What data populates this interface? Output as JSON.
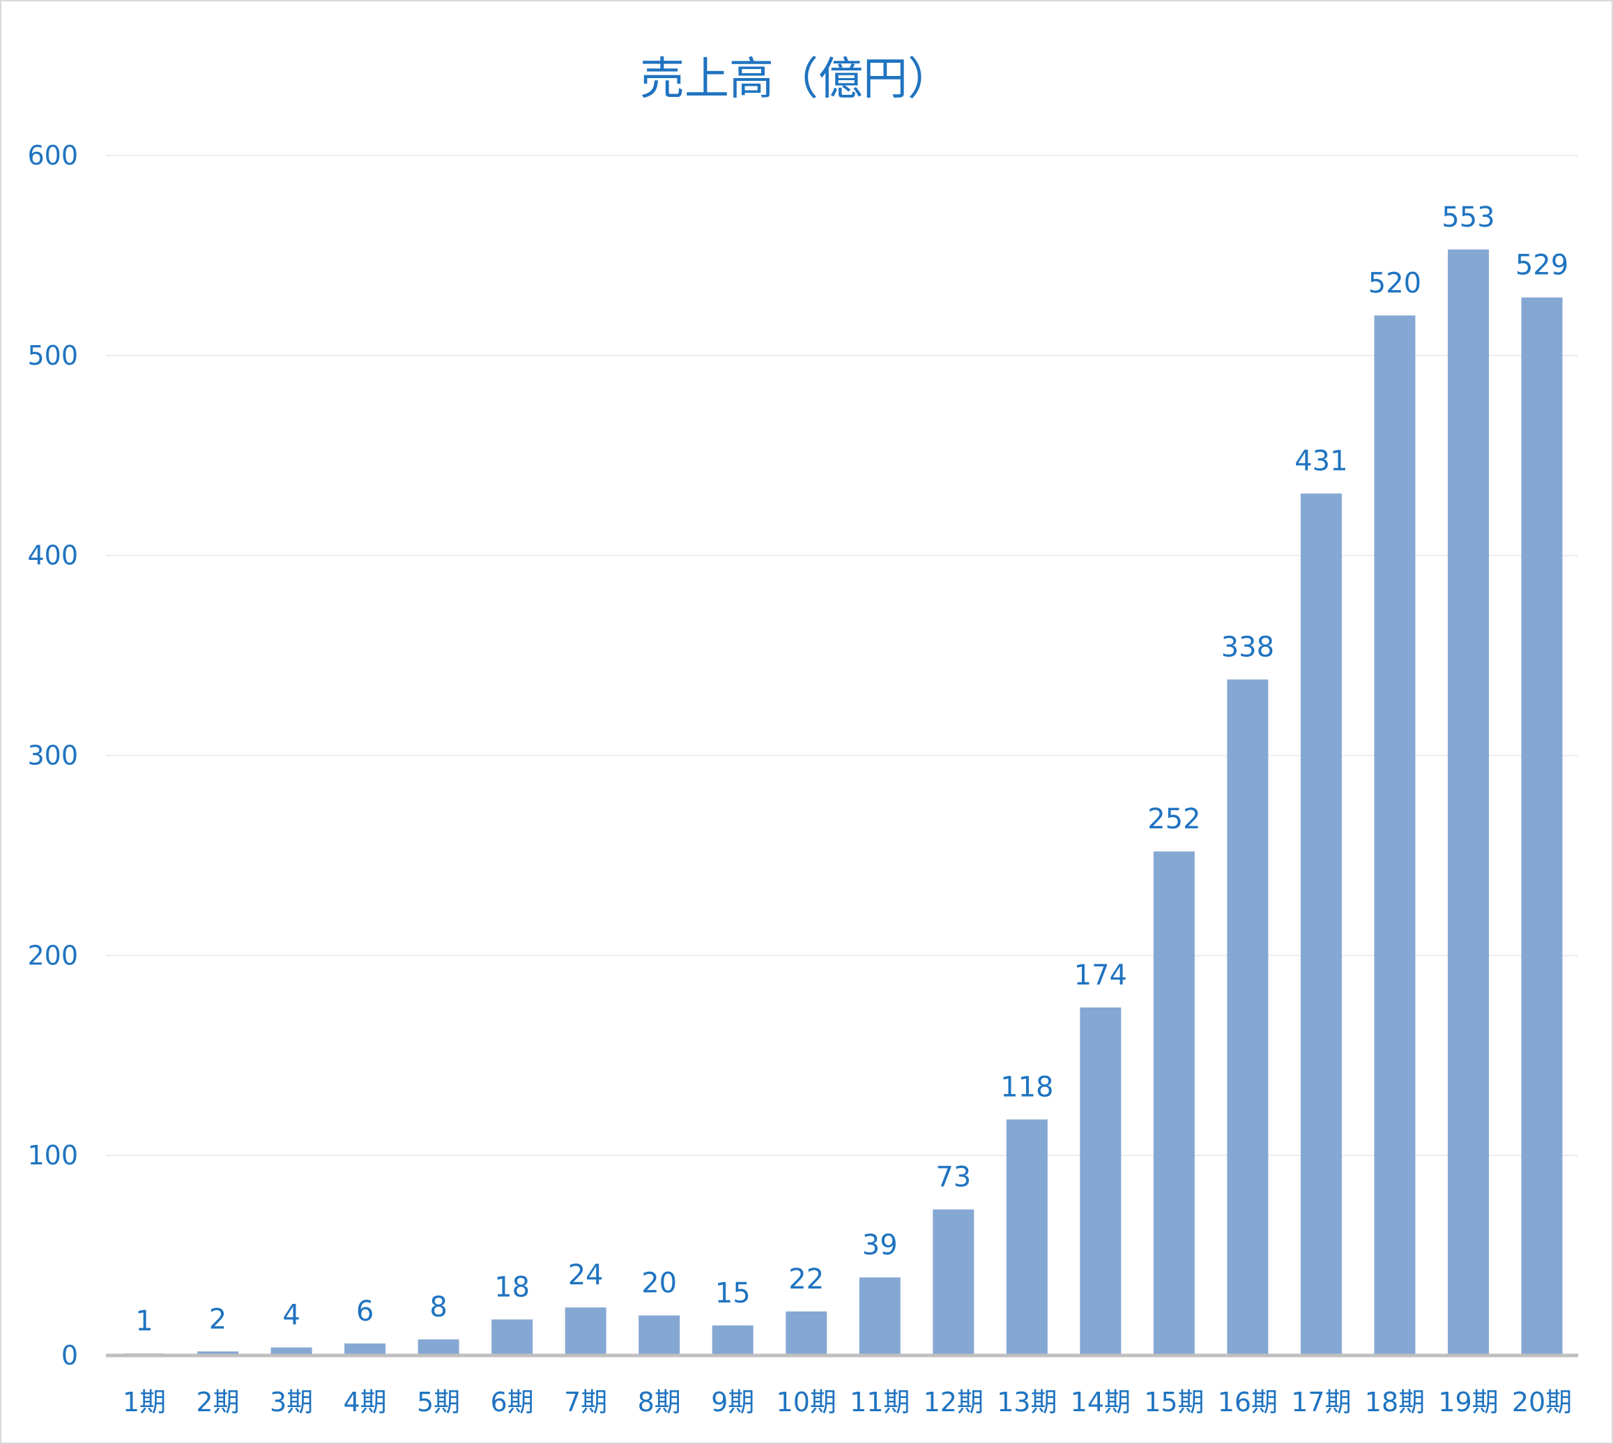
{
  "chart_data": {
    "type": "bar",
    "title": "売上高（億円）",
    "xlabel": "",
    "ylabel": "",
    "ylim": [
      0,
      600
    ],
    "yticks": [
      0,
      100,
      200,
      300,
      400,
      500,
      600
    ],
    "grid": true,
    "legend": "none",
    "categories": [
      "1期",
      "2期",
      "3期",
      "4期",
      "5期",
      "6期",
      "7期",
      "8期",
      "9期",
      "10期",
      "11期",
      "12期",
      "13期",
      "14期",
      "15期",
      "16期",
      "17期",
      "18期",
      "19期",
      "20期"
    ],
    "values": [
      1,
      2,
      4,
      6,
      8,
      18,
      24,
      20,
      15,
      22,
      39,
      73,
      118,
      174,
      252,
      338,
      431,
      520,
      553,
      529
    ],
    "colors": {
      "bar": "#85a7d3",
      "text": "#1f73c0",
      "grid": "#ececec",
      "axis": "#bfbfbf"
    }
  }
}
